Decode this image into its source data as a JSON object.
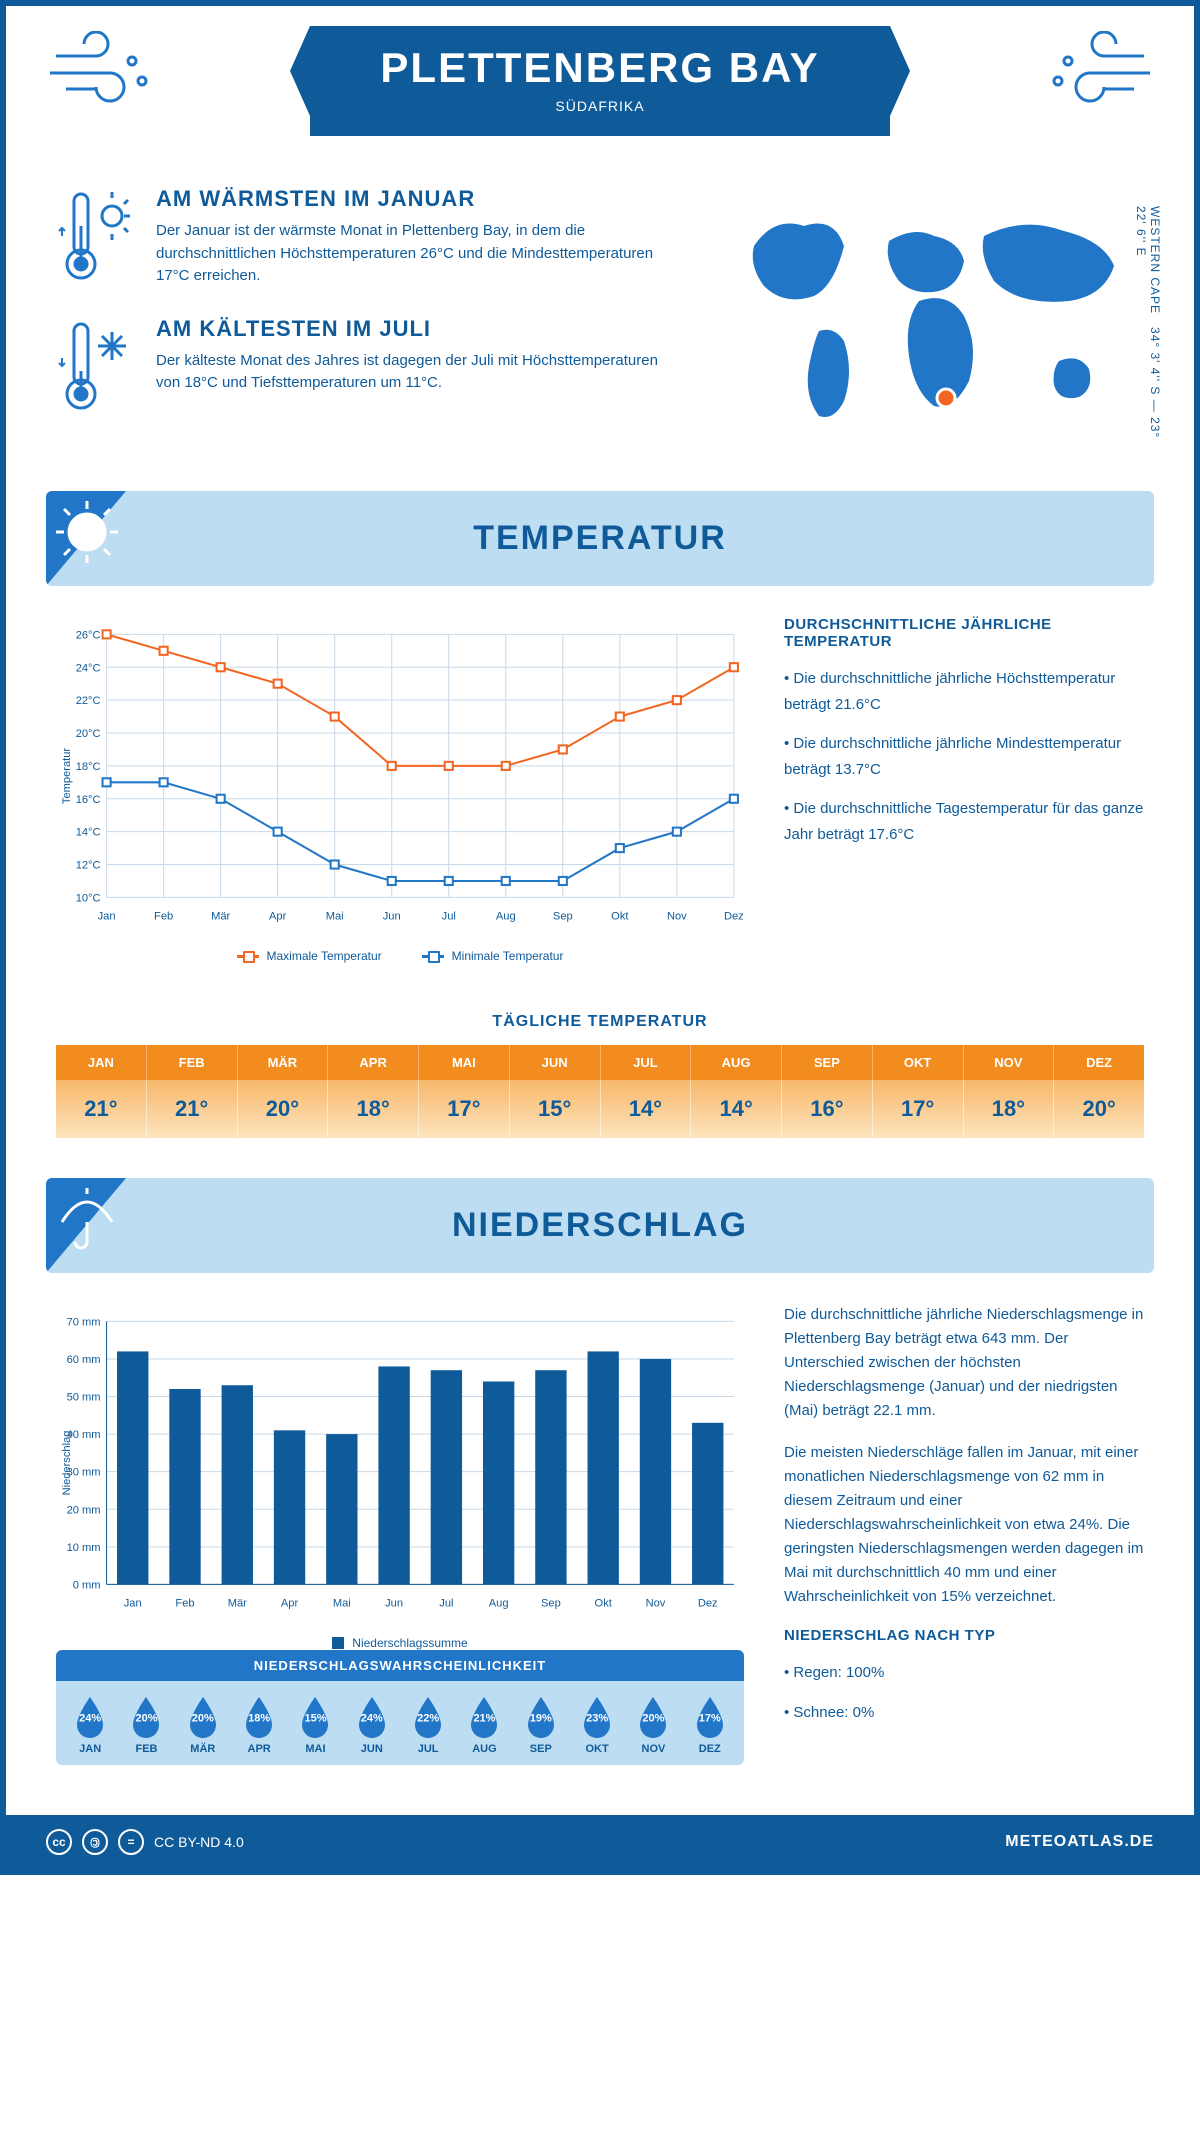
{
  "header": {
    "title": "PLETTENBERG BAY",
    "subtitle": "SÜDAFRIKA"
  },
  "coords": "34° 3' 4'' S — 23° 22' 6'' E",
  "region": "WESTERN CAPE",
  "facts": {
    "warm": {
      "title": "AM WÄRMSTEN IM JANUAR",
      "text": "Der Januar ist der wärmste Monat in Plettenberg Bay, in dem die durchschnittlichen Höchsttemperaturen 26°C und die Mindesttemperaturen 17°C erreichen."
    },
    "cold": {
      "title": "AM KÄLTESTEN IM JULI",
      "text": "Der kälteste Monat des Jahres ist dagegen der Juli mit Höchsttemperaturen von 18°C und Tiefsttemperaturen um 11°C."
    }
  },
  "sections": {
    "temp": "TEMPERATUR",
    "precip": "NIEDERSCHLAG"
  },
  "months_short": [
    "Jan",
    "Feb",
    "Mär",
    "Apr",
    "Mai",
    "Jun",
    "Jul",
    "Aug",
    "Sep",
    "Okt",
    "Nov",
    "Dez"
  ],
  "months_upper": [
    "JAN",
    "FEB",
    "MÄR",
    "APR",
    "MAI",
    "JUN",
    "JUL",
    "AUG",
    "SEP",
    "OKT",
    "NOV",
    "DEZ"
  ],
  "temp_chart": {
    "type": "line",
    "y_label": "Temperatur",
    "ylim": [
      10,
      26
    ],
    "ytick_step": 2,
    "y_suffix": "°C",
    "grid_color": "#c9d9e8",
    "series": [
      {
        "name": "Maximale Temperatur",
        "color": "#f26522",
        "values": [
          26,
          25,
          24,
          23,
          21,
          18,
          18,
          18,
          19,
          21,
          22,
          24
        ]
      },
      {
        "name": "Minimale Temperatur",
        "color": "#2176c7",
        "values": [
          17,
          17,
          16,
          14,
          12,
          11,
          11,
          11,
          11,
          13,
          14,
          16
        ]
      }
    ],
    "marker": "square",
    "marker_fill": "#ffffff",
    "line_width": 2
  },
  "temp_text": {
    "heading": "DURCHSCHNITTLICHE JÄHRLICHE TEMPERATUR",
    "bullets": [
      "• Die durchschnittliche jährliche Höchsttemperatur beträgt 21.6°C",
      "• Die durchschnittliche jährliche Mindesttemperatur beträgt 13.7°C",
      "• Die durchschnittliche Tagestemperatur für das ganze Jahr beträgt 17.6°C"
    ]
  },
  "daily_temp": {
    "title": "TÄGLICHE TEMPERATUR",
    "values": [
      "21°",
      "21°",
      "20°",
      "18°",
      "17°",
      "15°",
      "14°",
      "14°",
      "16°",
      "17°",
      "18°",
      "20°"
    ],
    "header_bg": "#f28c1e",
    "body_gradient_from": "#f8b76a",
    "body_gradient_to": "#fce4be"
  },
  "precip_chart": {
    "type": "bar",
    "y_label": "Niederschlag",
    "ylim": [
      0,
      70
    ],
    "ytick_step": 10,
    "y_suffix": " mm",
    "bar_color": "#0f5a99",
    "grid_color": "#c9d9e8",
    "values": [
      62,
      52,
      53,
      41,
      40,
      58,
      57,
      54,
      57,
      62,
      60,
      43
    ],
    "legend": "Niederschlagssumme"
  },
  "precip_text": {
    "p1": "Die durchschnittliche jährliche Niederschlagsmenge in Plettenberg Bay beträgt etwa 643 mm. Der Unterschied zwischen der höchsten Niederschlagsmenge (Januar) und der niedrigsten (Mai) beträgt 22.1 mm.",
    "p2": "Die meisten Niederschläge fallen im Januar, mit einer monatlichen Niederschlagsmenge von 62 mm in diesem Zeitraum und einer Niederschlagswahrscheinlichkeit von etwa 24%. Die geringsten Niederschlagsmengen werden dagegen im Mai mit durchschnittlich 40 mm und einer Wahrscheinlichkeit von 15% verzeichnet.",
    "type_heading": "NIEDERSCHLAG NACH TYP",
    "type_bullets": [
      "• Regen: 100%",
      "• Schnee: 0%"
    ]
  },
  "prob": {
    "title": "NIEDERSCHLAGSWAHRSCHEINLICHKEIT",
    "values": [
      "24%",
      "20%",
      "20%",
      "18%",
      "15%",
      "24%",
      "22%",
      "21%",
      "19%",
      "23%",
      "20%",
      "17%"
    ],
    "drop_color": "#2176c7",
    "bg": "#bdddf3"
  },
  "footer": {
    "license": "CC BY-ND 4.0",
    "site": "METEOATLAS.DE"
  },
  "colors": {
    "primary": "#0f5a99",
    "accent": "#2176c7",
    "light": "#bdddf3",
    "orange": "#f26522"
  }
}
